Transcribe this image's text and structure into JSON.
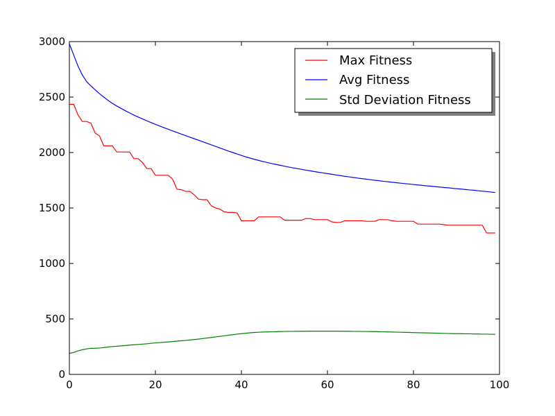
{
  "chart_data": {
    "type": "line",
    "title": "",
    "xlabel": "",
    "ylabel": "",
    "xlim": [
      0,
      100
    ],
    "ylim": [
      0,
      3000
    ],
    "xticks": [
      0,
      20,
      40,
      60,
      80,
      100
    ],
    "yticks": [
      0,
      500,
      1000,
      1500,
      2000,
      2500,
      3000
    ],
    "xtick_labels": [
      "0",
      "20",
      "40",
      "60",
      "80",
      "100"
    ],
    "ytick_labels": [
      "0",
      "500",
      "1000",
      "1500",
      "2000",
      "2500",
      "3000"
    ],
    "grid": false,
    "legend_position": "top-right",
    "x": [
      0,
      1,
      2,
      3,
      4,
      5,
      6,
      7,
      8,
      9,
      10,
      11,
      12,
      13,
      14,
      15,
      16,
      17,
      18,
      19,
      20,
      21,
      22,
      23,
      24,
      25,
      26,
      27,
      28,
      29,
      30,
      31,
      32,
      33,
      34,
      35,
      36,
      37,
      38,
      39,
      40,
      41,
      42,
      43,
      44,
      45,
      46,
      47,
      48,
      49,
      50,
      51,
      52,
      53,
      54,
      55,
      56,
      57,
      58,
      59,
      60,
      61,
      62,
      63,
      64,
      65,
      66,
      67,
      68,
      69,
      70,
      71,
      72,
      73,
      74,
      75,
      76,
      77,
      78,
      79,
      80,
      81,
      82,
      83,
      84,
      85,
      86,
      87,
      88,
      89,
      90,
      91,
      92,
      93,
      94,
      95,
      96,
      97,
      98,
      99
    ],
    "series": [
      {
        "name": "Max Fitness",
        "color": "#ff0000",
        "values": [
          2435,
          2435,
          2340,
          2280,
          2280,
          2265,
          2175,
          2150,
          2060,
          2060,
          2060,
          2005,
          2005,
          2005,
          2005,
          1945,
          1945,
          1910,
          1855,
          1855,
          1795,
          1795,
          1795,
          1795,
          1760,
          1670,
          1665,
          1650,
          1650,
          1620,
          1580,
          1575,
          1575,
          1520,
          1500,
          1490,
          1465,
          1460,
          1460,
          1455,
          1385,
          1385,
          1385,
          1385,
          1420,
          1420,
          1420,
          1420,
          1420,
          1420,
          1390,
          1390,
          1390,
          1390,
          1390,
          1405,
          1405,
          1395,
          1395,
          1395,
          1395,
          1375,
          1370,
          1370,
          1385,
          1385,
          1385,
          1385,
          1385,
          1380,
          1380,
          1380,
          1395,
          1395,
          1395,
          1385,
          1380,
          1380,
          1380,
          1380,
          1380,
          1355,
          1355,
          1355,
          1355,
          1355,
          1355,
          1350,
          1345,
          1345,
          1345,
          1345,
          1345,
          1345,
          1345,
          1345,
          1345,
          1275,
          1275,
          1275
        ]
      },
      {
        "name": "Avg Fitness",
        "color": "#0000ff",
        "values": [
          2980,
          2880,
          2780,
          2700,
          2640,
          2600,
          2565,
          2530,
          2500,
          2470,
          2443,
          2420,
          2398,
          2377,
          2357,
          2338,
          2320,
          2303,
          2286,
          2270,
          2254,
          2239,
          2224,
          2210,
          2195,
          2181,
          2167,
          2153,
          2139,
          2125,
          2111,
          2097,
          2083,
          2069,
          2055,
          2041,
          2027,
          2013,
          2000,
          1987,
          1974,
          1961,
          1950,
          1939,
          1929,
          1919,
          1910,
          1901,
          1893,
          1885,
          1877,
          1869,
          1862,
          1855,
          1848,
          1841,
          1835,
          1828,
          1822,
          1816,
          1810,
          1804,
          1798,
          1792,
          1786,
          1781,
          1775,
          1770,
          1765,
          1760,
          1755,
          1750,
          1746,
          1741,
          1737,
          1732,
          1728,
          1724,
          1720,
          1716,
          1712,
          1708,
          1704,
          1700,
          1697,
          1693,
          1689,
          1685,
          1682,
          1678,
          1674,
          1671,
          1667,
          1663,
          1660,
          1656,
          1652,
          1648,
          1644,
          1640
        ]
      },
      {
        "name": "Std Deviation Fitness",
        "color": "#008000",
        "values": [
          190,
          198,
          212,
          222,
          230,
          235,
          236,
          238,
          242,
          247,
          251,
          254,
          257,
          260,
          264,
          267,
          270,
          273,
          276,
          280,
          284,
          287,
          290,
          293,
          296,
          300,
          303,
          306,
          310,
          314,
          318,
          323,
          328,
          333,
          338,
          343,
          348,
          353,
          358,
          363,
          367,
          371,
          375,
          378,
          380,
          382,
          383,
          384,
          385,
          386,
          387,
          388,
          388,
          389,
          389,
          389,
          390,
          390,
          390,
          390,
          390,
          390,
          390,
          389,
          389,
          389,
          388,
          388,
          387,
          387,
          386,
          386,
          385,
          384,
          383,
          382,
          381,
          380,
          379,
          378,
          377,
          376,
          375,
          374,
          373,
          372,
          371,
          370,
          369,
          368,
          367,
          367,
          366,
          366,
          365,
          364,
          363,
          363,
          362,
          361
        ]
      }
    ]
  }
}
